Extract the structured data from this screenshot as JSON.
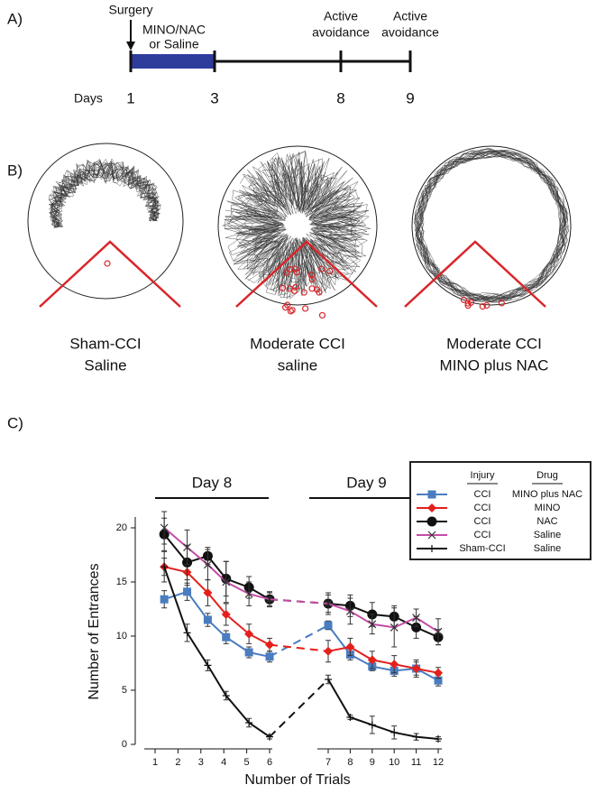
{
  "panel_a": {
    "label": "A)",
    "surgery": "Surgery",
    "treatment": [
      "MINO/NAC",
      "or Saline"
    ],
    "events": [
      [
        "Active",
        "avoidance"
      ],
      [
        "Active",
        "avoidance"
      ]
    ],
    "days_label": "Days",
    "days": [
      "1",
      "3",
      "8",
      "9"
    ]
  },
  "panel_b": {
    "label": "B)",
    "groups": [
      [
        "Sham-CCI",
        "Saline"
      ],
      [
        "Moderate CCI",
        "saline"
      ],
      [
        "Moderate CCI",
        "MINO plus NAC"
      ]
    ]
  },
  "chart_data": {
    "type": "line",
    "panel_label": "C)",
    "x_label": "Number of Trials",
    "y_label": "Number of Entrances",
    "annotations": [
      "Day 8",
      "Day 9"
    ],
    "legend_headers": [
      "Injury",
      "Drug"
    ],
    "x": [
      1.4,
      2.4,
      3.3,
      4.1,
      5.1,
      6,
      7,
      8,
      9,
      10,
      11,
      12
    ],
    "xlim": [
      1,
      12
    ],
    "x_break": [
      6,
      7
    ],
    "xticks": [
      1,
      2,
      3,
      4,
      5,
      6,
      7,
      8,
      9,
      10,
      11,
      12
    ],
    "ylim": [
      0,
      21
    ],
    "yticks": [
      0,
      5,
      10,
      15,
      20
    ],
    "series": [
      {
        "injury": "CCI",
        "drug": "MINO plus NAC",
        "color": "#4a7cc0",
        "marker": "square",
        "values": [
          13.4,
          14.1,
          11.5,
          9.9,
          8.5,
          8.1,
          11.0,
          8.3,
          7.2,
          6.8,
          7.0,
          5.9
        ],
        "errors": [
          0.8,
          0.8,
          0.6,
          0.6,
          0.5,
          0.5,
          0.4,
          0.5,
          0.4,
          0.5,
          0.6,
          0.5
        ]
      },
      {
        "injury": "CCI",
        "drug": "MINO",
        "color": "#e3201b",
        "marker": "diamond",
        "values": [
          16.4,
          15.9,
          14.0,
          12.0,
          10.2,
          9.2,
          8.6,
          9.0,
          7.8,
          7.4,
          7.0,
          6.6
        ],
        "errors": [
          1.4,
          1.2,
          1.2,
          1.0,
          0.9,
          0.6,
          1.0,
          0.8,
          0.8,
          0.8,
          0.8,
          0.5
        ]
      },
      {
        "injury": "CCI",
        "drug": "NAC",
        "color": "#111111",
        "marker": "circle",
        "values": [
          19.4,
          16.8,
          17.4,
          15.3,
          14.5,
          13.4,
          13.0,
          12.8,
          12.0,
          11.8,
          10.8,
          9.9
        ],
        "errors": [
          1.5,
          1.6,
          0.8,
          1.6,
          1.0,
          0.7,
          0.8,
          1.0,
          1.1,
          1.0,
          1.0,
          0.7
        ]
      },
      {
        "injury": "CCI",
        "drug": "Saline",
        "color": "#c54ca6",
        "marker": "x",
        "values": [
          20.0,
          18.2,
          16.6,
          15.0,
          13.9,
          13.4,
          13.0,
          12.3,
          11.1,
          10.8,
          11.7,
          10.4
        ],
        "errors": [
          1.5,
          1.6,
          1.4,
          1.9,
          1.1,
          0.6,
          1.0,
          1.2,
          0.9,
          1.8,
          0.8,
          1.2
        ]
      },
      {
        "injury": "Sham-CCI",
        "drug": "Saline",
        "color": "#111111",
        "marker": "plus",
        "values": [
          16.4,
          10.3,
          7.3,
          4.5,
          2.0,
          0.7,
          6.0,
          2.5,
          1.8,
          1.1,
          0.7,
          0.5
        ],
        "errors": [
          0.8,
          0.8,
          0.5,
          0.4,
          0.4,
          0.2,
          0.4,
          0.2,
          0.8,
          0.6,
          0.3,
          0.2
        ]
      }
    ]
  }
}
